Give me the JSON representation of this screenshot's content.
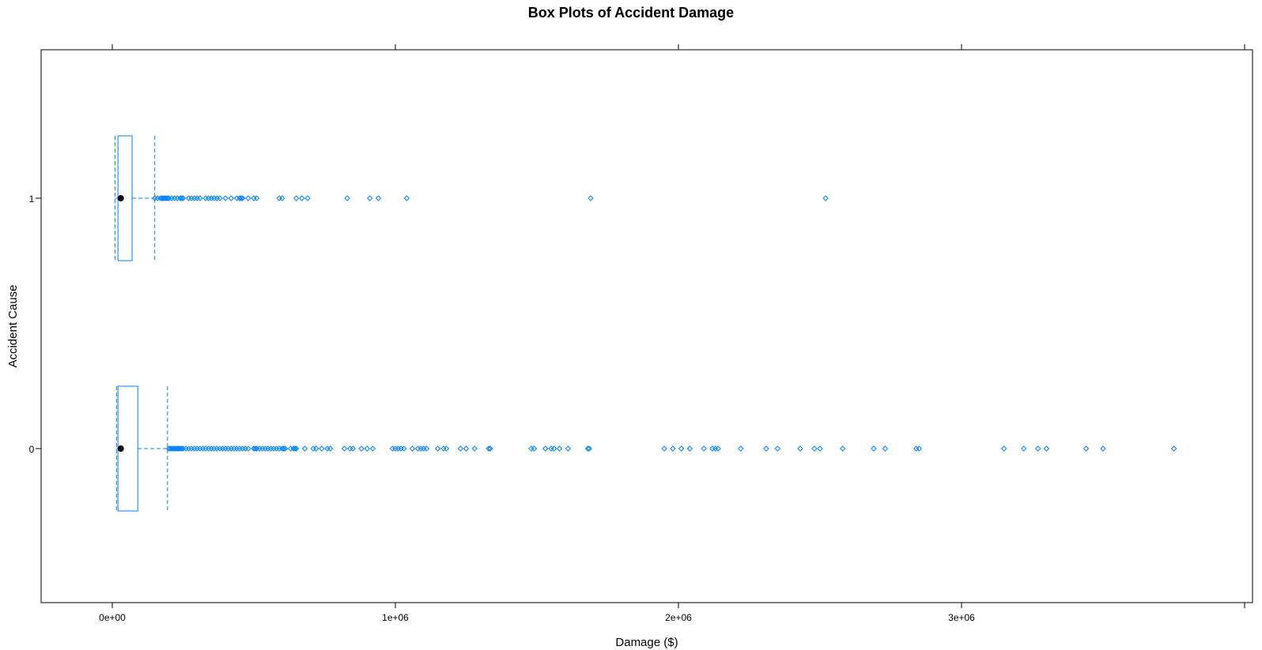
{
  "chart_data": {
    "type": "boxplot",
    "orientation": "horizontal",
    "title": "Box Plots of Accident Damage",
    "xlabel": "Damage ($)",
    "ylabel": "Accident Cause",
    "xlim": [
      -250000,
      4000000
    ],
    "x_ticks": [
      {
        "value": 0,
        "label": "0e+00"
      },
      {
        "value": 1000000,
        "label": "1e+06"
      },
      {
        "value": 2000000,
        "label": "2e+06"
      },
      {
        "value": 3000000,
        "label": "3e+06"
      },
      {
        "value": 4000000,
        "label": ""
      }
    ],
    "grid": false,
    "colors": {
      "box": "#0080ff",
      "median_dot": "#000000",
      "frame": "#000000"
    },
    "categories": [
      "0",
      "1"
    ],
    "groups": [
      {
        "category": "0",
        "whisker_low": 15000,
        "q1": 20000,
        "median": 30000,
        "q3": 90000,
        "whisker_high": 195000,
        "outliers": [
          200000,
          205000,
          210000,
          215000,
          220000,
          225000,
          230000,
          235000,
          240000,
          245000,
          250000,
          260000,
          270000,
          280000,
          290000,
          300000,
          310000,
          320000,
          330000,
          340000,
          350000,
          360000,
          370000,
          380000,
          390000,
          400000,
          410000,
          420000,
          430000,
          440000,
          450000,
          460000,
          470000,
          480000,
          500000,
          505000,
          510000,
          520000,
          530000,
          540000,
          550000,
          560000,
          570000,
          580000,
          590000,
          600000,
          605000,
          610000,
          630000,
          640000,
          645000,
          650000,
          680000,
          710000,
          720000,
          740000,
          760000,
          770000,
          820000,
          840000,
          850000,
          880000,
          900000,
          920000,
          990000,
          1000000,
          1010000,
          1020000,
          1030000,
          1060000,
          1080000,
          1090000,
          1100000,
          1110000,
          1150000,
          1170000,
          1180000,
          1230000,
          1250000,
          1280000,
          1330000,
          1335000,
          1480000,
          1490000,
          1530000,
          1550000,
          1560000,
          1580000,
          1610000,
          1680000,
          1685000,
          1950000,
          1980000,
          2010000,
          2040000,
          2090000,
          2120000,
          2130000,
          2140000,
          2220000,
          2310000,
          2350000,
          2430000,
          2480000,
          2500000,
          2580000,
          2690000,
          2730000,
          2840000,
          2850000,
          3150000,
          3220000,
          3270000,
          3300000,
          3440000,
          3500000,
          3750000
        ]
      },
      {
        "category": "1",
        "whisker_low": 10000,
        "q1": 20000,
        "median": 30000,
        "q3": 70000,
        "whisker_high": 150000,
        "outliers": [
          150000,
          160000,
          170000,
          175000,
          180000,
          185000,
          190000,
          195000,
          200000,
          210000,
          220000,
          230000,
          240000,
          245000,
          250000,
          270000,
          280000,
          290000,
          300000,
          310000,
          330000,
          340000,
          350000,
          360000,
          370000,
          380000,
          400000,
          420000,
          440000,
          450000,
          455000,
          460000,
          480000,
          500000,
          510000,
          590000,
          600000,
          650000,
          670000,
          690000,
          830000,
          910000,
          940000,
          1040000,
          1690000,
          2520000
        ]
      }
    ]
  }
}
